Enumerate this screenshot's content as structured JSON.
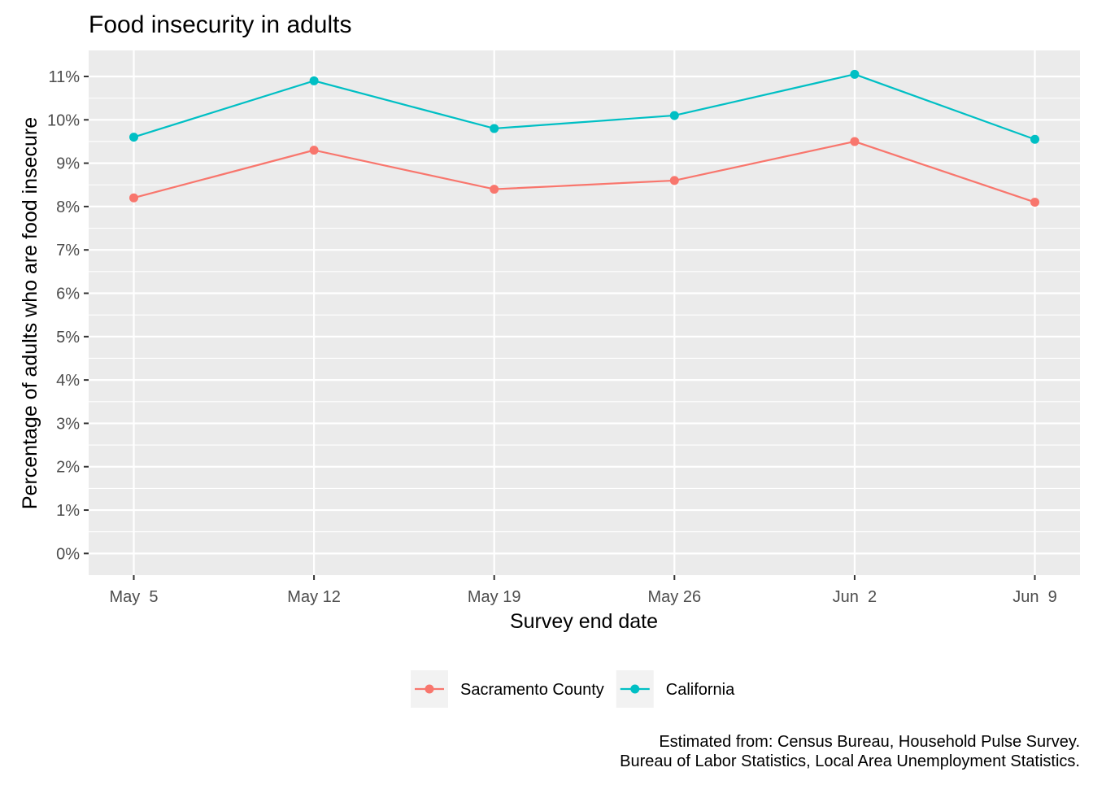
{
  "chart_data": {
    "type": "line",
    "title": "Food insecurity in adults",
    "xlabel": "Survey end date",
    "ylabel": "Percentage of adults who are food insecure",
    "x": [
      "May  5",
      "May 12",
      "May 19",
      "May 26",
      "Jun  2",
      "Jun  9"
    ],
    "ylim": [
      -0.5,
      11.6
    ],
    "yticks": [
      0,
      1,
      2,
      3,
      4,
      5,
      6,
      7,
      8,
      9,
      10,
      11
    ],
    "ytick_labels": [
      "0%",
      "1%",
      "2%",
      "3%",
      "4%",
      "5%",
      "6%",
      "7%",
      "8%",
      "9%",
      "10%",
      "11%"
    ],
    "grid": true,
    "legend_position": "bottom",
    "series": [
      {
        "name": "Sacramento County",
        "color": "#F8766D",
        "values": [
          8.2,
          9.3,
          8.4,
          8.6,
          9.5,
          8.1
        ]
      },
      {
        "name": "California",
        "color": "#00BFC4",
        "values": [
          9.6,
          10.9,
          9.8,
          10.1,
          11.05,
          9.55
        ]
      }
    ],
    "caption_lines": [
      "Estimated from: Census Bureau, Household Pulse Survey.",
      "Bureau of Labor Statistics, Local Area Unemployment Statistics."
    ]
  }
}
